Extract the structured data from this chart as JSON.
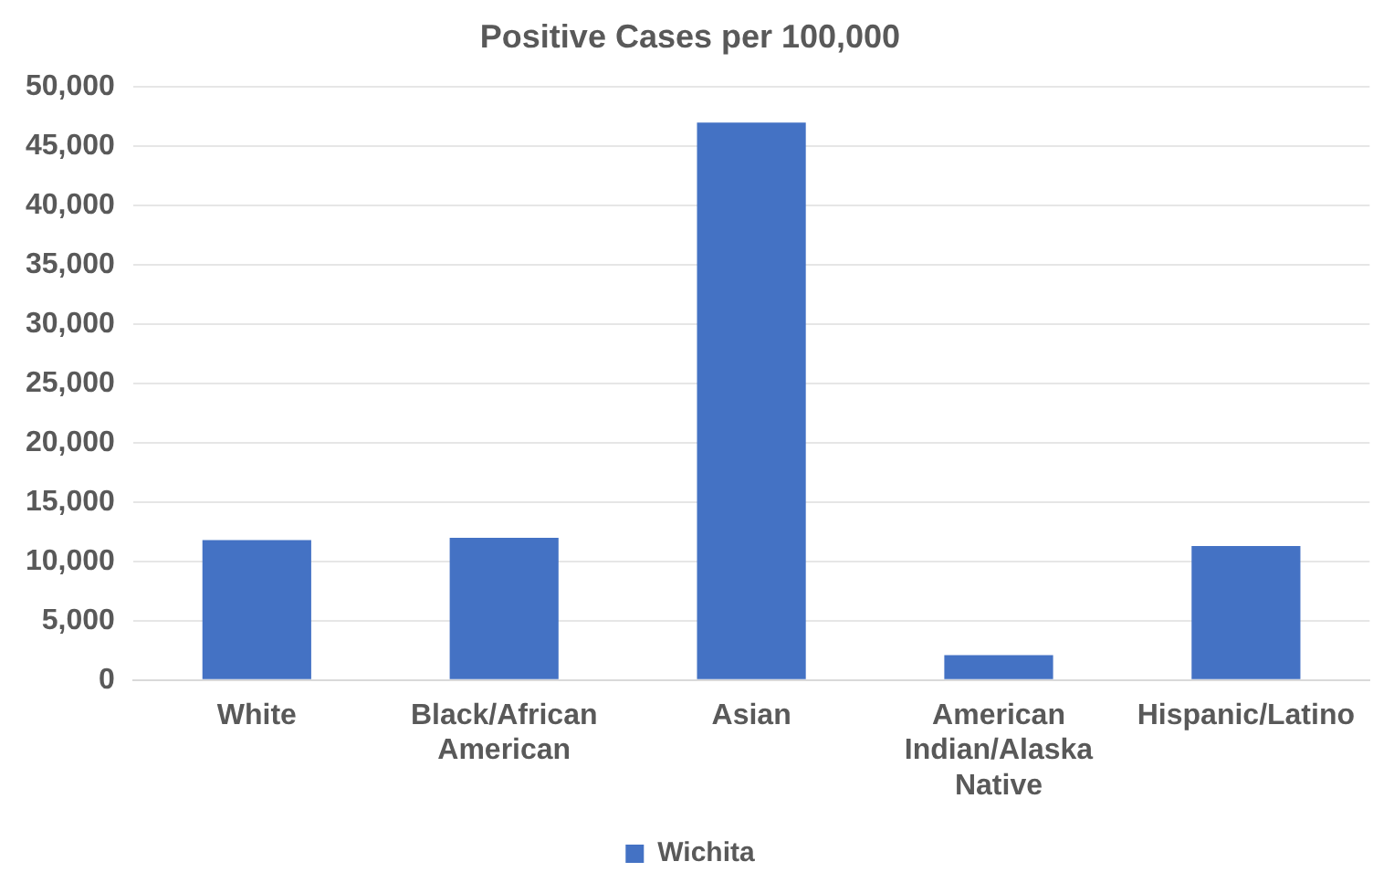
{
  "chart_data": {
    "type": "bar",
    "title": "Positive Cases per 100,000",
    "categories": [
      "White",
      "Black/African American",
      "Asian",
      "American Indian/Alaska Native",
      "Hispanic/Latino"
    ],
    "series": [
      {
        "name": "Wichita",
        "color": "#4472c4",
        "values": [
          11800,
          12000,
          47000,
          2100,
          11300
        ]
      }
    ],
    "ylim": [
      0,
      50000
    ],
    "yticks": [
      0,
      {
        "value": 5000,
        "label": "5,000"
      },
      {
        "value": 10000,
        "label": "10,000"
      },
      {
        "value": 15000,
        "label": "15,000"
      },
      {
        "value": 20000,
        "label": "20,000"
      },
      {
        "value": 25000,
        "label": "25,000"
      },
      {
        "value": 30000,
        "label": "30,000"
      },
      {
        "value": 35000,
        "label": "35,000"
      },
      {
        "value": 40000,
        "label": "40,000"
      },
      {
        "value": 45000,
        "label": "45,000"
      },
      {
        "value": 50000,
        "label": "50,000"
      }
    ],
    "grid": "y",
    "legend": "bottom"
  }
}
